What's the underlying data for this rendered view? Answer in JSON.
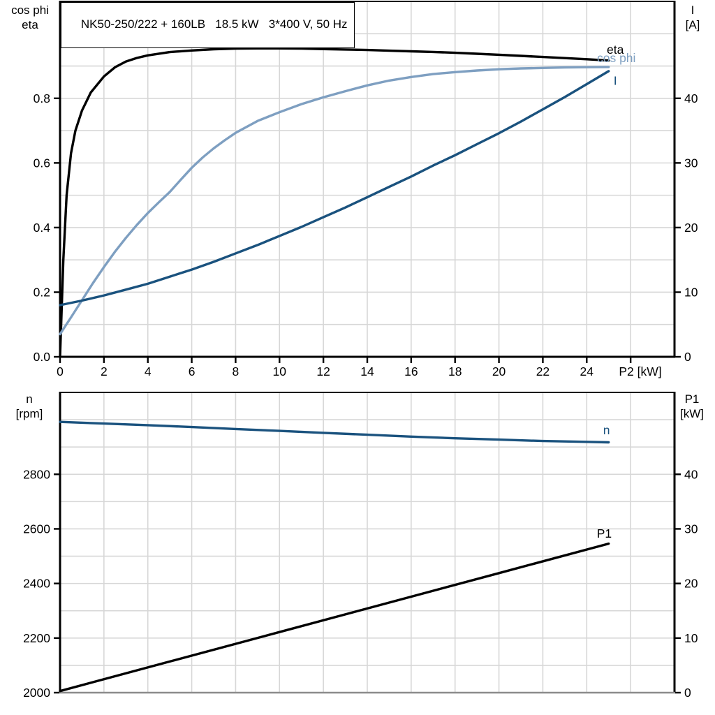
{
  "title": "NK50-250/222 + 160LB   18.5 kW   3*400 V, 50 Hz",
  "colors": {
    "black": "#000000",
    "dark_blue": "#1A527E",
    "light_blue": "#7E9FC1",
    "grid": "#D7D7D7",
    "frame": "#000000",
    "frame_gray": "#8C8C8C"
  },
  "chart_data": [
    {
      "type": "line",
      "name": "motor-eta-cosphi-current",
      "x_axis": {
        "label": "P2 [kW]",
        "min": 0,
        "max": 28,
        "grid_step": 2,
        "ticks": [
          {
            "v": 0,
            "label": "0"
          },
          {
            "v": 2,
            "label": "2"
          },
          {
            "v": 4,
            "label": "4"
          },
          {
            "v": 6,
            "label": "6"
          },
          {
            "v": 8,
            "label": "8"
          },
          {
            "v": 10,
            "label": "10"
          },
          {
            "v": 12,
            "label": "12"
          },
          {
            "v": 14,
            "label": "14"
          },
          {
            "v": 16,
            "label": "16"
          },
          {
            "v": 18,
            "label": "18"
          },
          {
            "v": 20,
            "label": "20"
          },
          {
            "v": 22,
            "label": "22"
          },
          {
            "v": 24,
            "label": "24"
          },
          {
            "v": 26,
            "label": ""
          }
        ]
      },
      "left_axis": {
        "label_lines": [
          "cos phi",
          "eta"
        ],
        "min": 0,
        "max": 1.1,
        "grid_step": 0.1,
        "ticks": [
          {
            "v": 0,
            "label": "0.0"
          },
          {
            "v": 0.2,
            "label": "0.2"
          },
          {
            "v": 0.4,
            "label": "0.4"
          },
          {
            "v": 0.6,
            "label": "0.6"
          },
          {
            "v": 0.8,
            "label": "0.8"
          }
        ]
      },
      "right_axis": {
        "label_lines": [
          "I",
          "[A]"
        ],
        "min": 0,
        "max": 55,
        "grid_step": 5,
        "ticks": [
          {
            "v": 0,
            "label": "0"
          },
          {
            "v": 10,
            "label": "10"
          },
          {
            "v": 20,
            "label": "20"
          },
          {
            "v": 30,
            "label": "30"
          },
          {
            "v": 40,
            "label": "40"
          }
        ]
      },
      "bottom_frame": "black",
      "series": [
        {
          "name": "eta",
          "axis": "left",
          "color": "black",
          "label": {
            "text": "eta",
            "x": 25.3,
            "v": 0.938
          },
          "points": [
            [
              0,
              0
            ],
            [
              0.15,
              0.3
            ],
            [
              0.3,
              0.5
            ],
            [
              0.5,
              0.63
            ],
            [
              0.7,
              0.7
            ],
            [
              1,
              0.762
            ],
            [
              1.4,
              0.818
            ],
            [
              2,
              0.868
            ],
            [
              2.5,
              0.896
            ],
            [
              3,
              0.914
            ],
            [
              3.5,
              0.925
            ],
            [
              4,
              0.933
            ],
            [
              5,
              0.943
            ],
            [
              6,
              0.948
            ],
            [
              7,
              0.952
            ],
            [
              8,
              0.954
            ],
            [
              9,
              0.9545
            ],
            [
              10,
              0.9545
            ],
            [
              11,
              0.954
            ],
            [
              12,
              0.9525
            ],
            [
              13,
              0.951
            ],
            [
              14,
              0.9495
            ],
            [
              15,
              0.9475
            ],
            [
              16,
              0.9455
            ],
            [
              17,
              0.9435
            ],
            [
              18,
              0.941
            ],
            [
              19,
              0.938
            ],
            [
              20,
              0.935
            ],
            [
              21,
              0.9315
            ],
            [
              22,
              0.928
            ],
            [
              23,
              0.9245
            ],
            [
              24,
              0.921
            ],
            [
              25,
              0.917
            ]
          ]
        },
        {
          "name": "cos phi",
          "axis": "left",
          "color": "light_blue",
          "label": {
            "text": "cos phi",
            "x": 25.35,
            "v": 0.912
          },
          "points": [
            [
              0,
              0.07
            ],
            [
              0.5,
              0.122
            ],
            [
              1,
              0.175
            ],
            [
              1.5,
              0.228
            ],
            [
              2,
              0.278
            ],
            [
              2.5,
              0.325
            ],
            [
              3,
              0.368
            ],
            [
              3.5,
              0.408
            ],
            [
              4,
              0.445
            ],
            [
              4.5,
              0.478
            ],
            [
              5,
              0.51
            ],
            [
              5.5,
              0.548
            ],
            [
              6,
              0.585
            ],
            [
              6.5,
              0.617
            ],
            [
              7,
              0.645
            ],
            [
              7.5,
              0.67
            ],
            [
              8,
              0.693
            ],
            [
              9,
              0.73
            ],
            [
              10,
              0.757
            ],
            [
              11,
              0.782
            ],
            [
              12,
              0.803
            ],
            [
              13,
              0.822
            ],
            [
              14,
              0.84
            ],
            [
              15,
              0.855
            ],
            [
              16,
              0.866
            ],
            [
              17,
              0.875
            ],
            [
              18,
              0.881
            ],
            [
              19,
              0.886
            ],
            [
              20,
              0.89
            ],
            [
              21,
              0.8925
            ],
            [
              22,
              0.894
            ],
            [
              23,
              0.8955
            ],
            [
              24,
              0.8965
            ],
            [
              25,
              0.897
            ]
          ]
        },
        {
          "name": "I",
          "axis": "right",
          "color": "dark_blue",
          "label": {
            "text": "I",
            "x": 25.3,
            "v": 42.1
          },
          "points": [
            [
              0,
              8
            ],
            [
              1,
              8.7
            ],
            [
              2,
              9.5
            ],
            [
              3,
              10.4
            ],
            [
              4,
              11.3
            ],
            [
              5,
              12.4
            ],
            [
              6,
              13.5
            ],
            [
              7,
              14.7
            ],
            [
              8,
              16
            ],
            [
              9,
              17.3
            ],
            [
              10,
              18.7
            ],
            [
              11,
              20.1
            ],
            [
              12,
              21.6
            ],
            [
              13,
              23.1
            ],
            [
              14,
              24.7
            ],
            [
              15,
              26.3
            ],
            [
              16,
              27.9
            ],
            [
              17,
              29.6
            ],
            [
              18,
              31.2
            ],
            [
              19,
              32.9
            ],
            [
              20,
              34.6
            ],
            [
              21,
              36.4
            ],
            [
              22,
              38.3
            ],
            [
              23,
              40.2
            ],
            [
              24,
              42.2
            ],
            [
              25,
              44.2
            ]
          ]
        }
      ]
    },
    {
      "type": "line",
      "name": "motor-speed-power",
      "x_axis": {
        "label": "",
        "min": 0,
        "max": 28,
        "grid_step": 2,
        "ticks": []
      },
      "left_axis": {
        "label_lines": [
          "n",
          "[rpm]"
        ],
        "min": 2000,
        "max": 3100,
        "grid_step": 100,
        "ticks": [
          {
            "v": 2000,
            "label": "2000"
          },
          {
            "v": 2200,
            "label": "2200"
          },
          {
            "v": 2400,
            "label": "2400"
          },
          {
            "v": 2600,
            "label": "2600"
          },
          {
            "v": 2800,
            "label": "2800"
          }
        ]
      },
      "right_axis": {
        "label_lines": [
          "P1",
          "[kW]"
        ],
        "min": 0,
        "max": 55,
        "grid_step": 5,
        "ticks": [
          {
            "v": 0,
            "label": "0"
          },
          {
            "v": 10,
            "label": "10"
          },
          {
            "v": 20,
            "label": "20"
          },
          {
            "v": 30,
            "label": "30"
          },
          {
            "v": 40,
            "label": "40"
          }
        ]
      },
      "bottom_frame": "gray",
      "series": [
        {
          "name": "n",
          "axis": "left",
          "color": "dark_blue",
          "label": {
            "text": "n",
            "x": 24.9,
            "v": 2946
          },
          "points": [
            [
              0,
              2992
            ],
            [
              2,
              2986
            ],
            [
              4,
              2980
            ],
            [
              6,
              2973
            ],
            [
              8,
              2966
            ],
            [
              10,
              2959
            ],
            [
              12,
              2952
            ],
            [
              14,
              2945
            ],
            [
              16,
              2938
            ],
            [
              18,
              2932
            ],
            [
              20,
              2927
            ],
            [
              22,
              2922
            ],
            [
              24,
              2919
            ],
            [
              25,
              2917
            ]
          ]
        },
        {
          "name": "P1",
          "axis": "right",
          "color": "black",
          "label": {
            "text": "P1",
            "x": 24.8,
            "v": 28.4
          },
          "points": [
            [
              0,
              0.3
            ],
            [
              5,
              5.7
            ],
            [
              10,
              11.1
            ],
            [
              15,
              16.5
            ],
            [
              20,
              21.9
            ],
            [
              25,
              27.3
            ]
          ]
        }
      ]
    }
  ]
}
